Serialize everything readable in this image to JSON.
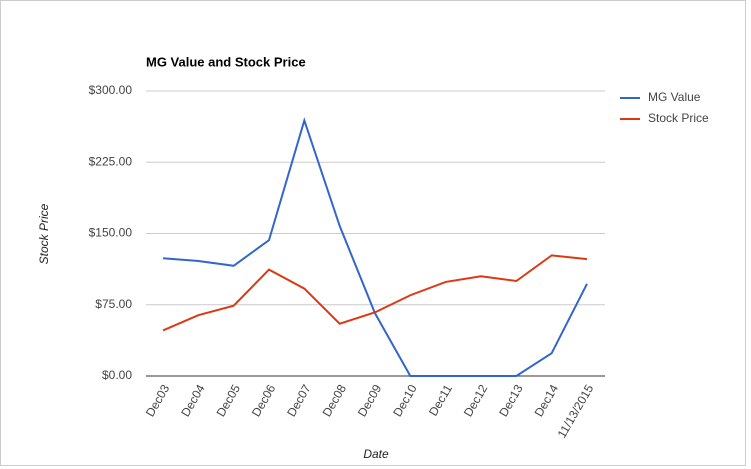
{
  "chart_data": {
    "type": "line",
    "title": "MG Value and Stock Price",
    "x_label": "Date",
    "y_label": "Stock Price",
    "categories": [
      "Dec03",
      "Dec04",
      "Dec05",
      "Dec06",
      "Dec07",
      "Dec08",
      "Dec09",
      "Dec10",
      "Dec11",
      "Dec12",
      "Dec13",
      "Dec14",
      "11/13/2015"
    ],
    "series": [
      {
        "name": "MG Value",
        "color": "#3366cc",
        "values": [
          124,
          121,
          116,
          143,
          269,
          158,
          66,
          0,
          0,
          0,
          0,
          24,
          97
        ]
      },
      {
        "name": "Stock Price",
        "color": "#dc3912",
        "values": [
          48,
          64,
          74,
          112,
          92,
          55,
          67,
          85,
          99,
          105,
          100,
          127,
          123
        ]
      }
    ],
    "ylim": [
      0,
      300
    ],
    "yticks": [
      {
        "value": 0,
        "label": "$0.00"
      },
      {
        "value": 75,
        "label": "$75.00"
      },
      {
        "value": 150,
        "label": "$150.00"
      },
      {
        "value": 225,
        "label": "$225.00"
      },
      {
        "value": 300,
        "label": "$300.00"
      }
    ],
    "grid": true,
    "legend": "right"
  }
}
